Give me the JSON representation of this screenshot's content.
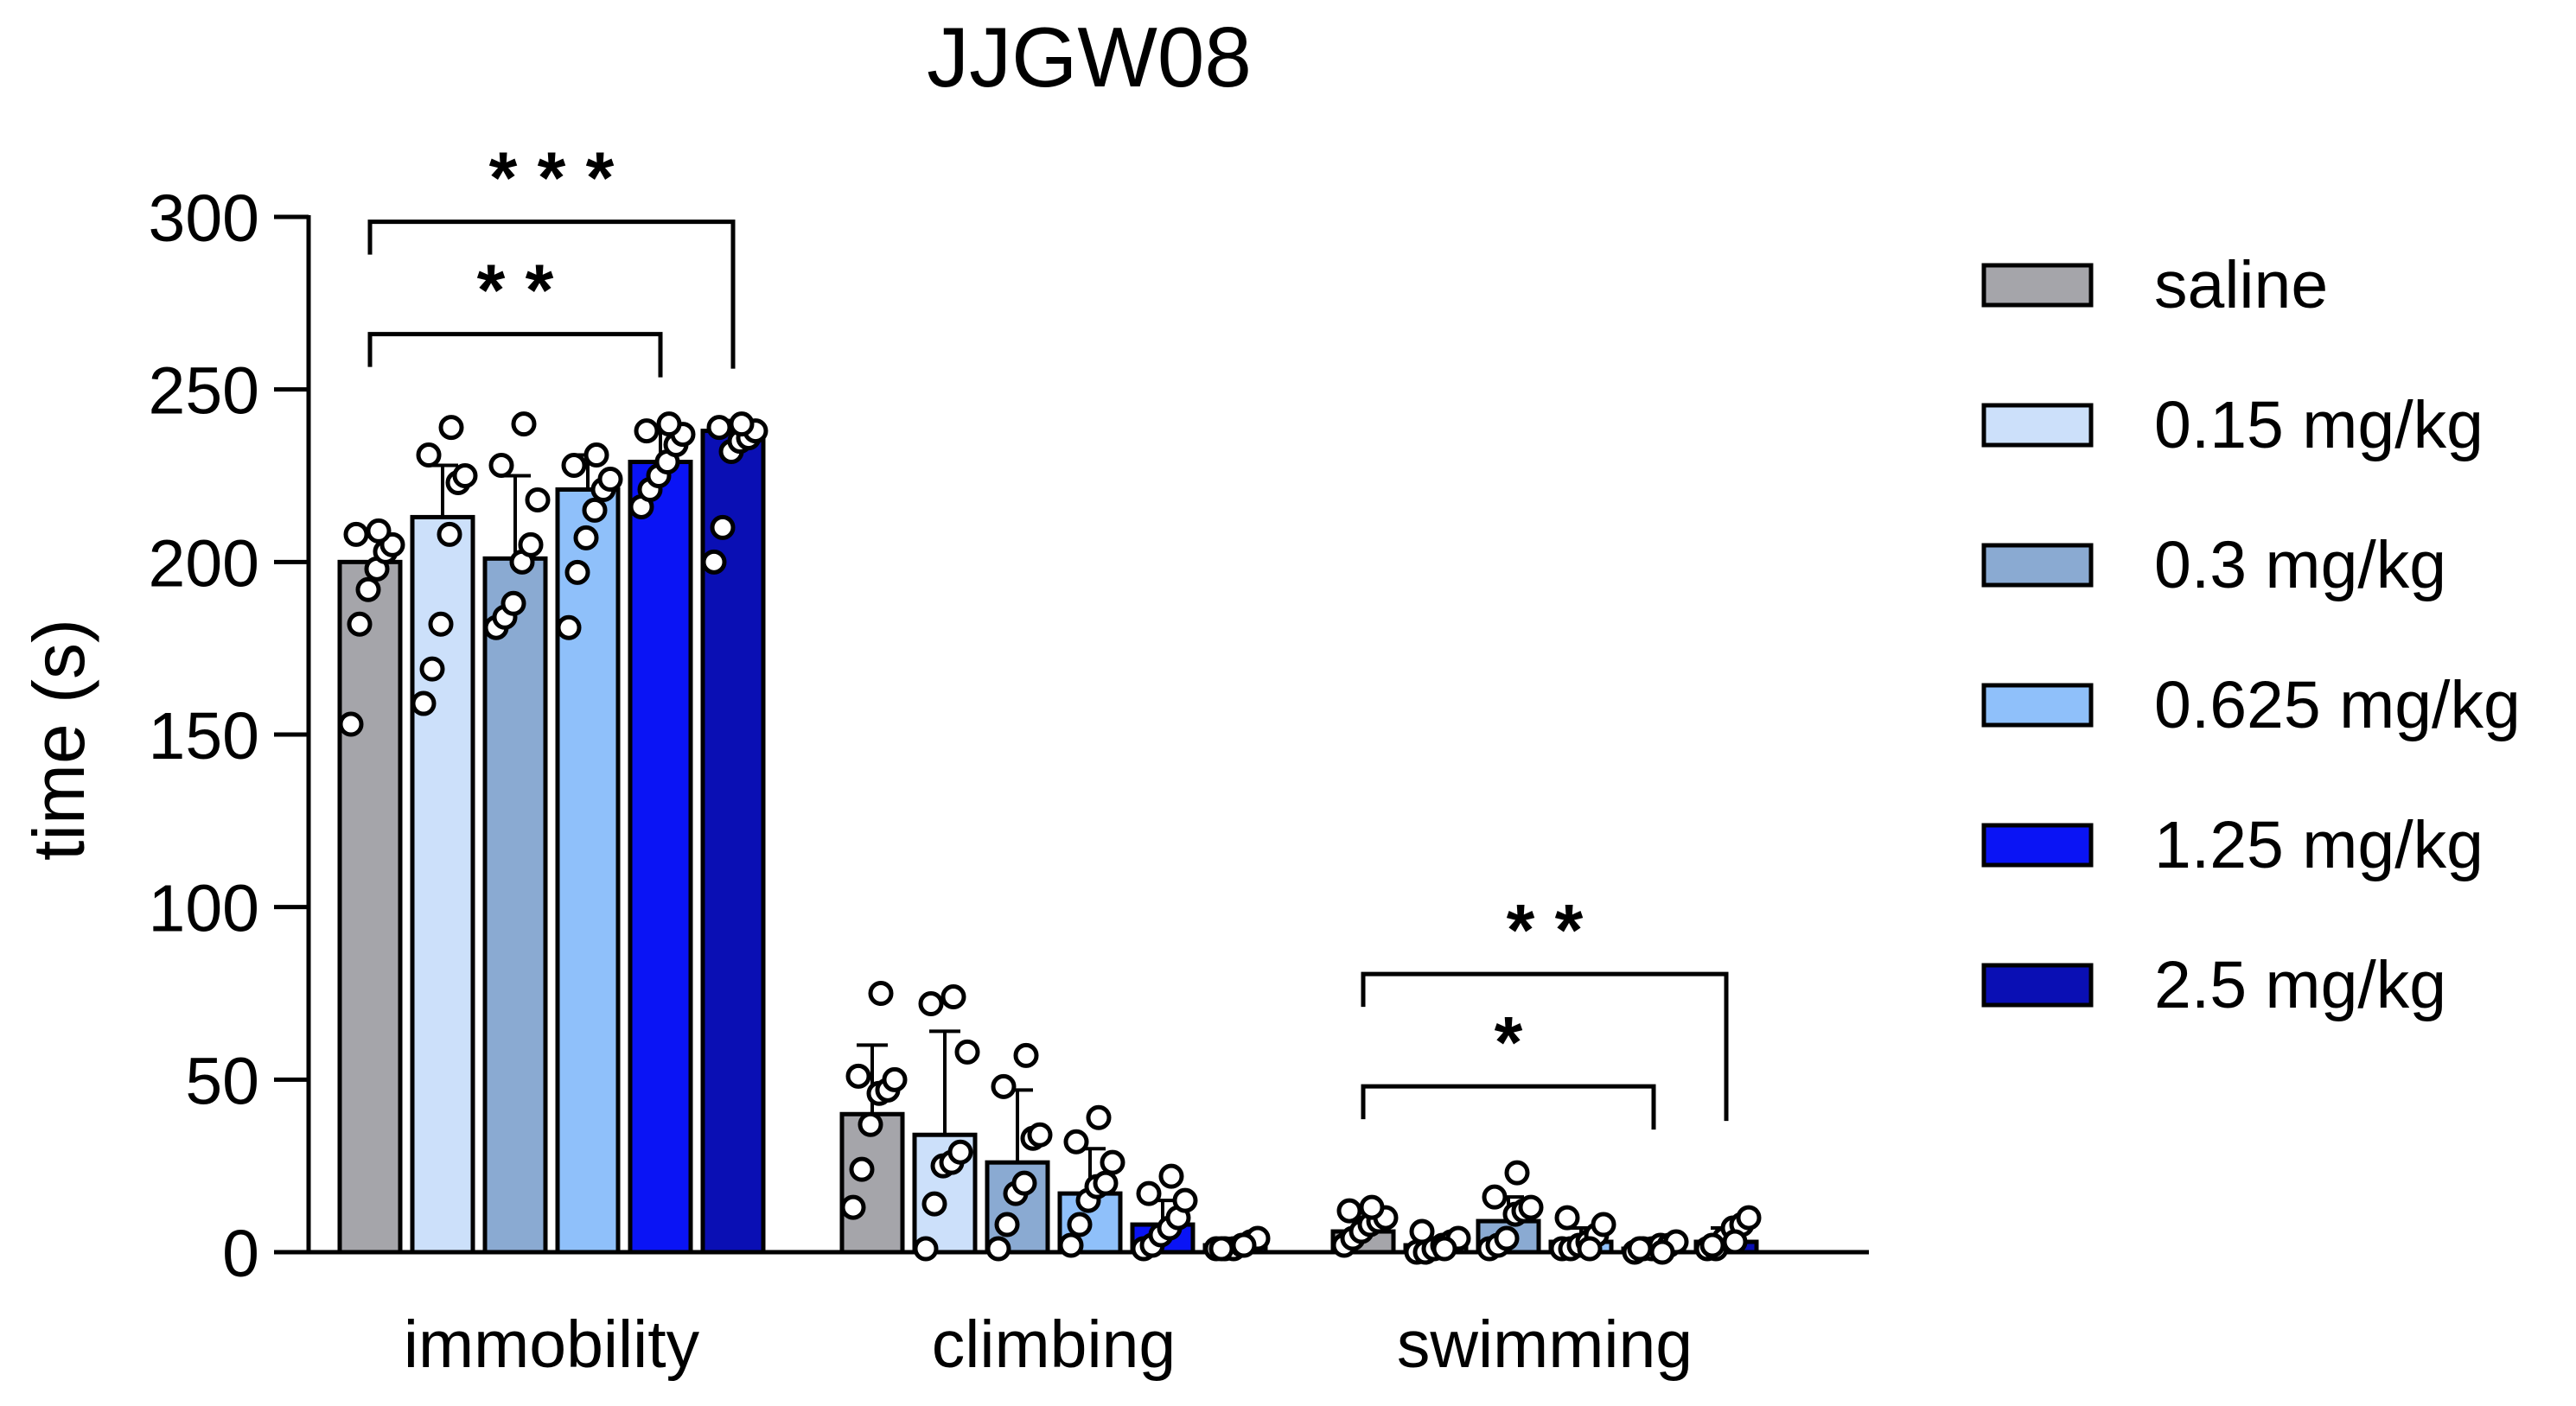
{
  "chart_data": {
    "type": "bar",
    "title": "JJGW08",
    "xlabel": "",
    "ylabel": "time (s)",
    "ylim": [
      0,
      300
    ],
    "yticks": [
      0,
      50,
      100,
      150,
      200,
      250,
      300
    ],
    "grid": false,
    "legend_position": "right",
    "categories": [
      "immobility",
      "climbing",
      "swimming"
    ],
    "series": [
      {
        "name": "saline",
        "color": "#A5A5AA",
        "values": [
          200,
          40,
          6
        ],
        "sd": [
          0,
          20,
          4
        ],
        "points": [
          [
            153,
            182,
            192,
            198,
            203,
            205,
            208,
            209
          ],
          [
            13,
            24,
            37,
            46,
            47,
            50,
            51,
            75
          ],
          [
            2,
            4,
            6,
            8,
            9,
            10,
            12,
            13
          ]
        ]
      },
      {
        "name": "0.15 mg/kg",
        "color": "#CCE0FA",
        "values": [
          213,
          34,
          2
        ],
        "sd": [
          15,
          30,
          2
        ],
        "points": [
          [
            159,
            169,
            182,
            208,
            223,
            225,
            231,
            239
          ],
          [
            1,
            14,
            25,
            26,
            29,
            58,
            72,
            74
          ],
          [
            0,
            0,
            1,
            2,
            3,
            4,
            6,
            1
          ]
        ]
      },
      {
        "name": "0.3 mg/kg",
        "color": "#8AAAD2",
        "values": [
          201,
          26,
          9
        ],
        "sd": [
          24,
          21,
          7
        ],
        "points": [
          [
            181,
            184,
            188,
            200,
            205,
            218,
            228,
            240
          ],
          [
            1,
            8,
            17,
            20,
            33,
            34,
            48,
            57
          ],
          [
            1,
            2,
            4,
            11,
            12,
            13,
            16,
            23
          ]
        ]
      },
      {
        "name": "0.625 mg/kg",
        "color": "#8FC0FA",
        "values": [
          221,
          17,
          3
        ],
        "sd": [
          10,
          13,
          4
        ],
        "points": [
          [
            181,
            197,
            207,
            215,
            221,
            224,
            228,
            231
          ],
          [
            2,
            8,
            15,
            19,
            20,
            26,
            32,
            39
          ],
          [
            1,
            1,
            2,
            3,
            5,
            8,
            10,
            1
          ]
        ]
      },
      {
        "name": "1.25 mg/kg",
        "color": "#0A14F5",
        "values": [
          229,
          8,
          1
        ],
        "sd": [
          9,
          7,
          2
        ],
        "points": [
          [
            216,
            221,
            225,
            229,
            234,
            237,
            238,
            240
          ],
          [
            1,
            2,
            5,
            7,
            10,
            15,
            17,
            22
          ],
          [
            0,
            1,
            1,
            2,
            2,
            3,
            1,
            0
          ]
        ]
      },
      {
        "name": "2.5 mg/kg",
        "color": "#0A0FB4",
        "values": [
          238,
          2,
          3
        ],
        "sd": [
          3,
          2,
          4
        ],
        "points": [
          [
            200,
            210,
            232,
            235,
            236,
            238,
            239,
            240
          ],
          [
            1,
            1,
            1,
            2,
            3,
            4,
            1,
            2
          ],
          [
            1,
            1,
            4,
            7,
            8,
            10,
            2,
            3
          ]
        ]
      }
    ],
    "annotations": [
      {
        "category": "immobility",
        "from": "saline",
        "to": "1.25 mg/kg",
        "label": "* *",
        "level": 1
      },
      {
        "category": "immobility",
        "from": "saline",
        "to": "2.5 mg/kg",
        "label": "* * *",
        "level": 2
      },
      {
        "category": "swimming",
        "from": "saline",
        "to": "1.25 mg/kg",
        "label": "*",
        "level": 1
      },
      {
        "category": "swimming",
        "from": "saline",
        "to": "2.5 mg/kg",
        "label": "* *",
        "level": 2
      }
    ]
  }
}
